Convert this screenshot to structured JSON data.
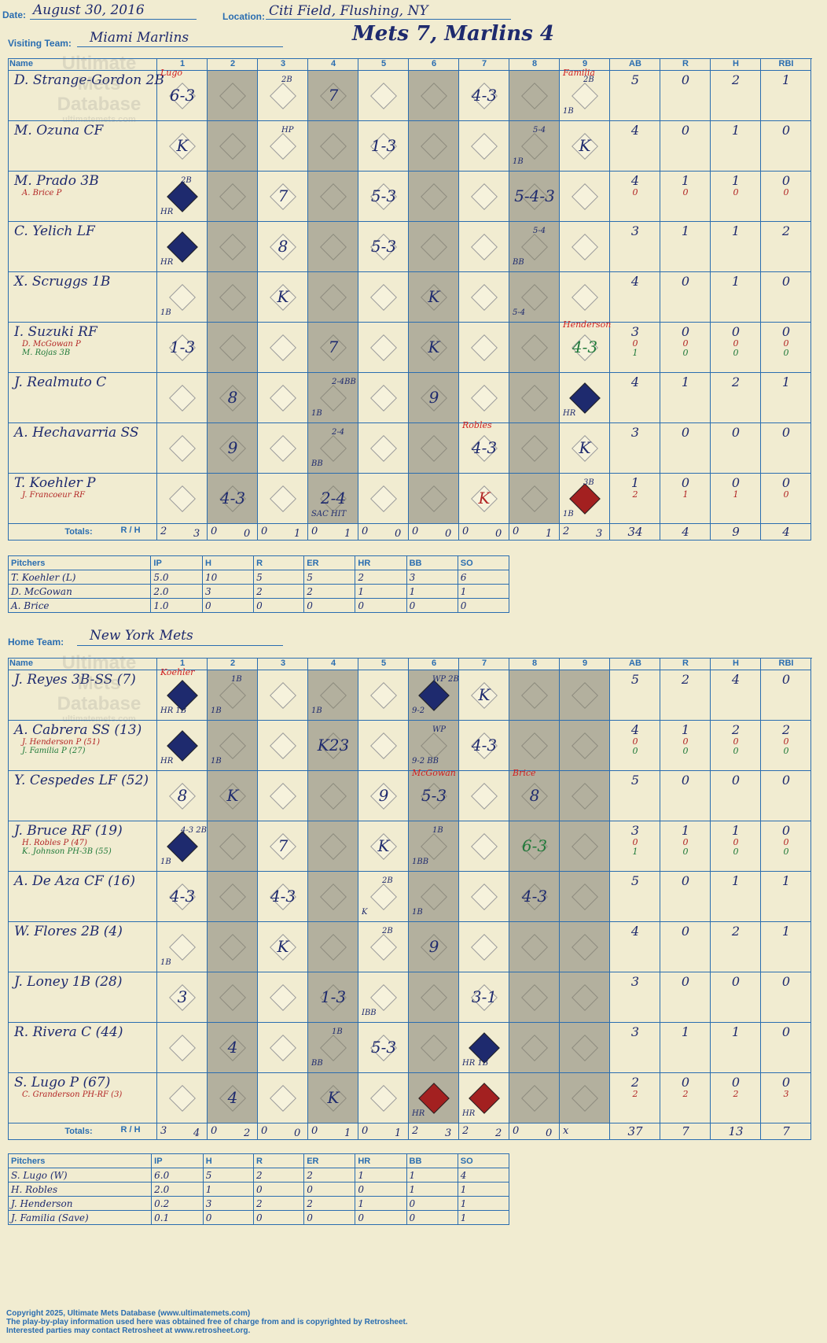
{
  "header": {
    "date_label": "Date:",
    "date": "August 30, 2016",
    "location_label": "Location:",
    "location": "Citi Field, Flushing, NY",
    "visiting_label": "Visiting Team:",
    "visiting_team": "Miami Marlins",
    "home_label": "Home Team:",
    "home_team": "New York Mets",
    "result": "Mets 7, Marlins 4"
  },
  "col_headers": {
    "name": "Name",
    "innings": [
      "1",
      "2",
      "3",
      "4",
      "5",
      "6",
      "7",
      "8",
      "9"
    ],
    "stats": [
      "AB",
      "R",
      "H",
      "RBI"
    ],
    "totals_label": "Totals:",
    "rh": "R / H"
  },
  "watermark": {
    "line1": "Ultimate",
    "line2": "Mets",
    "line3": "Database",
    "line4": "ultimatemets.com"
  },
  "visitors": {
    "rows": [
      {
        "name": "D. Strange-Gordon 2B",
        "subs": [],
        "stats": [
          [
            "5"
          ],
          [
            "0"
          ],
          [
            "2"
          ],
          [
            "1"
          ]
        ],
        "plays": [
          {
            "inn": 1,
            "text": "6-3",
            "note": "Lugo",
            "noteRed": true
          },
          {
            "inn": 3,
            "text": "",
            "mark": "2B"
          },
          {
            "inn": 4,
            "text": "7"
          },
          {
            "inn": 7,
            "text": "4-3"
          },
          {
            "inn": 9,
            "text": "",
            "mark": "2B",
            "mark2": "1B",
            "note": "Familia",
            "noteRed": true
          }
        ]
      },
      {
        "name": "M. Ozuna CF",
        "subs": [],
        "stats": [
          [
            "4"
          ],
          [
            "0"
          ],
          [
            "1"
          ],
          [
            "0"
          ]
        ],
        "plays": [
          {
            "inn": 1,
            "text": "K"
          },
          {
            "inn": 3,
            "text": "",
            "mark": "HP"
          },
          {
            "inn": 5,
            "text": "1-3"
          },
          {
            "inn": 8,
            "text": "",
            "mark": "5-4",
            "mark2": "1B"
          },
          {
            "inn": 9,
            "text": "K"
          }
        ]
      },
      {
        "name": "M. Prado 3B",
        "subs": [
          {
            "t": "A. Brice P",
            "c": "red"
          }
        ],
        "stats": [
          [
            "4",
            "0"
          ],
          [
            "1",
            "0"
          ],
          [
            "1",
            "0"
          ],
          [
            "0",
            "0"
          ]
        ],
        "plays": [
          {
            "inn": 1,
            "text": "",
            "run": true,
            "mark": "2B",
            "mark2": "HR"
          },
          {
            "inn": 3,
            "text": "7"
          },
          {
            "inn": 5,
            "text": "5-3"
          },
          {
            "inn": 8,
            "text": "5-4-3"
          }
        ]
      },
      {
        "name": "C. Yelich LF",
        "subs": [],
        "stats": [
          [
            "3"
          ],
          [
            "1"
          ],
          [
            "1"
          ],
          [
            "2"
          ]
        ],
        "plays": [
          {
            "inn": 1,
            "text": "",
            "run": true,
            "mark2": "HR"
          },
          {
            "inn": 3,
            "text": "8"
          },
          {
            "inn": 5,
            "text": "5-3"
          },
          {
            "inn": 8,
            "text": "",
            "mark": "5-4",
            "mark2": "BB"
          }
        ]
      },
      {
        "name": "X. Scruggs 1B",
        "subs": [],
        "stats": [
          [
            "4"
          ],
          [
            "0"
          ],
          [
            "1"
          ],
          [
            "0"
          ]
        ],
        "plays": [
          {
            "inn": 1,
            "text": "",
            "mark2": "1B"
          },
          {
            "inn": 3,
            "text": "K"
          },
          {
            "inn": 6,
            "text": "K"
          },
          {
            "inn": 8,
            "text": "",
            "mark2": "5-4"
          }
        ]
      },
      {
        "name": "I. Suzuki RF",
        "subs": [
          {
            "t": "D. McGowan P",
            "c": "red"
          },
          {
            "t": "M. Rojas 3B",
            "c": "grn"
          }
        ],
        "stats": [
          [
            "3",
            "0",
            "1"
          ],
          [
            "0",
            "0",
            "0"
          ],
          [
            "0",
            "0",
            "0"
          ],
          [
            "0",
            "0",
            "0"
          ]
        ],
        "plays": [
          {
            "inn": 1,
            "text": "1-3"
          },
          {
            "inn": 4,
            "text": "7"
          },
          {
            "inn": 6,
            "text": "K"
          },
          {
            "inn": 9,
            "text": "4-3",
            "green": true,
            "note": "Henderson",
            "noteRed": true
          }
        ]
      },
      {
        "name": "J. Realmuto C",
        "subs": [],
        "stats": [
          [
            "4"
          ],
          [
            "1"
          ],
          [
            "2"
          ],
          [
            "1"
          ]
        ],
        "plays": [
          {
            "inn": 2,
            "text": "8"
          },
          {
            "inn": 4,
            "text": "",
            "mark": "2-4BB",
            "mark2": "1B"
          },
          {
            "inn": 6,
            "text": "9"
          },
          {
            "inn": 9,
            "text": "",
            "run": true,
            "mark2": "HR"
          }
        ]
      },
      {
        "name": "A. Hechavarria SS",
        "subs": [],
        "stats": [
          [
            "3"
          ],
          [
            "0"
          ],
          [
            "0"
          ],
          [
            "0"
          ]
        ],
        "plays": [
          {
            "inn": 2,
            "text": "9"
          },
          {
            "inn": 4,
            "text": "",
            "mark": "2-4",
            "mark2": "BB"
          },
          {
            "inn": 7,
            "text": "4-3",
            "note": "Robles",
            "noteRed": true
          },
          {
            "inn": 9,
            "text": "K"
          }
        ]
      },
      {
        "name": "T. Koehler P",
        "subs": [
          {
            "t": "J. Francoeur RF",
            "c": "red"
          }
        ],
        "stats": [
          [
            "1",
            "2"
          ],
          [
            "0",
            "1"
          ],
          [
            "0",
            "1"
          ],
          [
            "0",
            "0"
          ]
        ],
        "plays": [
          {
            "inn": 2,
            "text": "4-3"
          },
          {
            "inn": 4,
            "text": "2-4",
            "mark2": "SAC HIT"
          },
          {
            "inn": 7,
            "text": "K",
            "red": true
          },
          {
            "inn": 9,
            "text": "",
            "runRed": true,
            "mark": "3B",
            "mark2": "1B"
          }
        ]
      }
    ],
    "totals": {
      "innings": [
        [
          "2",
          "3"
        ],
        [
          "0",
          "0"
        ],
        [
          "0",
          "1"
        ],
        [
          "0",
          "1"
        ],
        [
          "0",
          "0"
        ],
        [
          "0",
          "0"
        ],
        [
          "0",
          "0"
        ],
        [
          "0",
          "1"
        ],
        [
          "2",
          "3"
        ]
      ],
      "stats": [
        "34",
        "4",
        "9",
        "4"
      ]
    }
  },
  "visitors_pitching": {
    "headers": [
      "Pitchers",
      "IP",
      "H",
      "R",
      "ER",
      "HR",
      "BB",
      "SO"
    ],
    "rows": [
      [
        "T. Koehler (L)",
        "5.0",
        "10",
        "5",
        "5",
        "2",
        "3",
        "6"
      ],
      [
        "D. McGowan",
        "2.0",
        "3",
        "2",
        "2",
        "1",
        "1",
        "1"
      ],
      [
        "A. Brice",
        "1.0",
        "0",
        "0",
        "0",
        "0",
        "0",
        "0"
      ]
    ]
  },
  "home": {
    "rows": [
      {
        "name": "J. Reyes 3B-SS (7)",
        "subs": [],
        "stats": [
          [
            "5"
          ],
          [
            "2"
          ],
          [
            "4"
          ],
          [
            "0"
          ]
        ],
        "plays": [
          {
            "inn": 1,
            "text": "",
            "run": true,
            "mark2": "HR 1B",
            "note": "Koehler",
            "noteRed": true
          },
          {
            "inn": 2,
            "text": "",
            "mark": "1B",
            "mark2": "1B"
          },
          {
            "inn": 4,
            "text": "",
            "mark2": "1B"
          },
          {
            "inn": 6,
            "text": "",
            "run": true,
            "mark": "WP 2B",
            "mark2": "9-2"
          },
          {
            "inn": 7,
            "text": "K"
          }
        ]
      },
      {
        "name": "A. Cabrera SS (13)",
        "subs": [
          {
            "t": "J. Henderson P (51)",
            "c": "red"
          },
          {
            "t": "J. Familia P (27)",
            "c": "grn"
          }
        ],
        "stats": [
          [
            "4",
            "0",
            "0"
          ],
          [
            "1",
            "0",
            "0"
          ],
          [
            "2",
            "0",
            "0"
          ],
          [
            "2",
            "0",
            "0"
          ]
        ],
        "plays": [
          {
            "inn": 1,
            "text": "",
            "run": true,
            "mark2": "HR"
          },
          {
            "inn": 2,
            "text": "",
            "mark2": "1B"
          },
          {
            "inn": 4,
            "text": "K23"
          },
          {
            "inn": 6,
            "text": "",
            "mark": "WP",
            "mark2": "9-2 BB"
          },
          {
            "inn": 7,
            "text": "4-3"
          }
        ]
      },
      {
        "name": "Y. Cespedes LF (52)",
        "subs": [],
        "stats": [
          [
            "5"
          ],
          [
            "0"
          ],
          [
            "0"
          ],
          [
            "0"
          ]
        ],
        "plays": [
          {
            "inn": 1,
            "text": "8"
          },
          {
            "inn": 2,
            "text": "K"
          },
          {
            "inn": 5,
            "text": "9"
          },
          {
            "inn": 6,
            "text": "5-3",
            "note": "McGowan",
            "noteRed": true
          },
          {
            "inn": 8,
            "text": "8",
            "note": "Brice",
            "noteRed": true
          }
        ]
      },
      {
        "name": "J. Bruce RF (19)",
        "subs": [
          {
            "t": "H. Robles P (47)",
            "c": "red"
          },
          {
            "t": "K. Johnson PH-3B (55)",
            "c": "grn"
          }
        ],
        "stats": [
          [
            "3",
            "0",
            "1"
          ],
          [
            "1",
            "0",
            "0"
          ],
          [
            "1",
            "0",
            "0"
          ],
          [
            "0",
            "0",
            "0"
          ]
        ],
        "plays": [
          {
            "inn": 1,
            "text": "",
            "run": true,
            "mark": "4-3 2B",
            "mark2": "1B"
          },
          {
            "inn": 3,
            "text": "7"
          },
          {
            "inn": 5,
            "text": "K"
          },
          {
            "inn": 6,
            "text": "",
            "mark": "1B",
            "mark2": "1BB"
          },
          {
            "inn": 8,
            "text": "6-3",
            "green": true
          }
        ]
      },
      {
        "name": "A. De Aza CF (16)",
        "subs": [],
        "stats": [
          [
            "5"
          ],
          [
            "0"
          ],
          [
            "1"
          ],
          [
            "1"
          ]
        ],
        "plays": [
          {
            "inn": 1,
            "text": "4-3"
          },
          {
            "inn": 3,
            "text": "4-3"
          },
          {
            "inn": 5,
            "text": "",
            "mark": "2B",
            "mark2": "K"
          },
          {
            "inn": 6,
            "text": "",
            "mark2": "1B"
          },
          {
            "inn": 8,
            "text": "4-3"
          }
        ]
      },
      {
        "name": "W. Flores 2B (4)",
        "subs": [],
        "stats": [
          [
            "4"
          ],
          [
            "0"
          ],
          [
            "2"
          ],
          [
            "1"
          ]
        ],
        "plays": [
          {
            "inn": 1,
            "text": "",
            "mark2": "1B"
          },
          {
            "inn": 3,
            "text": "K"
          },
          {
            "inn": 5,
            "text": "",
            "mark": "2B"
          },
          {
            "inn": 6,
            "text": "9"
          }
        ]
      },
      {
        "name": "J. Loney 1B (28)",
        "subs": [],
        "stats": [
          [
            "3"
          ],
          [
            "0"
          ],
          [
            "0"
          ],
          [
            "0"
          ]
        ],
        "plays": [
          {
            "inn": 1,
            "text": "3"
          },
          {
            "inn": 4,
            "text": "1-3"
          },
          {
            "inn": 5,
            "text": "",
            "mark2": "IBB"
          },
          {
            "inn": 7,
            "text": "3-1"
          }
        ]
      },
      {
        "name": "R. Rivera C (44)",
        "subs": [],
        "stats": [
          [
            "3"
          ],
          [
            "1"
          ],
          [
            "1"
          ],
          [
            "0"
          ]
        ],
        "plays": [
          {
            "inn": 2,
            "text": "4"
          },
          {
            "inn": 4,
            "text": "",
            "mark": "1B",
            "mark2": "BB"
          },
          {
            "inn": 5,
            "text": "5-3"
          },
          {
            "inn": 7,
            "text": "",
            "run": true,
            "mark2": "HR 1B"
          }
        ]
      },
      {
        "name": "S. Lugo P (67)",
        "subs": [
          {
            "t": "C. Granderson PH-RF (3)",
            "c": "red"
          }
        ],
        "stats": [
          [
            "2",
            "2"
          ],
          [
            "0",
            "2"
          ],
          [
            "0",
            "2"
          ],
          [
            "0",
            "3"
          ]
        ],
        "plays": [
          {
            "inn": 2,
            "text": "4"
          },
          {
            "inn": 4,
            "text": "K"
          },
          {
            "inn": 6,
            "text": "",
            "runRed": true,
            "mark2": "HR"
          },
          {
            "inn": 7,
            "text": "",
            "runRed": true,
            "mark2": "HR"
          }
        ]
      }
    ],
    "totals": {
      "innings": [
        [
          "3",
          "4"
        ],
        [
          "0",
          "2"
        ],
        [
          "0",
          "0"
        ],
        [
          "0",
          "1"
        ],
        [
          "0",
          "1"
        ],
        [
          "2",
          "3"
        ],
        [
          "2",
          "2"
        ],
        [
          "0",
          "0"
        ],
        [
          "x",
          ""
        ]
      ],
      "stats": [
        "37",
        "7",
        "13",
        "7"
      ]
    }
  },
  "home_pitching": {
    "headers": [
      "Pitchers",
      "IP",
      "H",
      "R",
      "ER",
      "HR",
      "BB",
      "SO"
    ],
    "rows": [
      [
        "S. Lugo (W)",
        "6.0",
        "5",
        "2",
        "2",
        "1",
        "1",
        "4"
      ],
      [
        "H. Robles",
        "2.0",
        "1",
        "0",
        "0",
        "0",
        "1",
        "1"
      ],
      [
        "J. Henderson",
        "0.2",
        "3",
        "2",
        "2",
        "1",
        "0",
        "1"
      ],
      [
        "J. Familia (Save)",
        "0.1",
        "0",
        "0",
        "0",
        "0",
        "0",
        "1"
      ]
    ]
  },
  "footer": {
    "line1": "Copyright 2025, Ultimate Mets Database (www.ultimatemets.com)",
    "line2": "The play-by-play information used here was obtained free of charge from and is copyrighted by Retrosheet.",
    "line3": "Interested parties may contact Retrosheet at www.retrosheet.org."
  },
  "colors": {
    "ink": "#1e2a6e",
    "grid": "#2a6db0",
    "paper": "#f1ecd1",
    "shade": "#b3b09e",
    "red": "#b22424",
    "green": "#207a3a"
  }
}
